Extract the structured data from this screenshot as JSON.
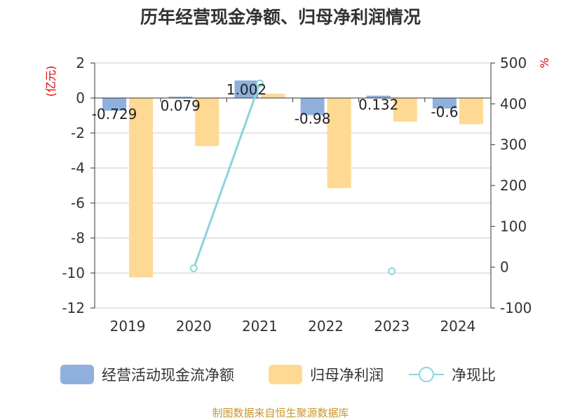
{
  "chart_data": {
    "type": "bar+line",
    "title": "历年经营现金净额、归母净利润情况",
    "categories": [
      "2019",
      "2020",
      "2021",
      "2022",
      "2023",
      "2024"
    ],
    "y_left": {
      "unit": "(亿元)",
      "ylim": [
        -12,
        2
      ],
      "ticks": [
        "2",
        "0",
        "-2",
        "-4",
        "-6",
        "-8",
        "-10",
        "-12"
      ]
    },
    "y_right": {
      "unit": "%",
      "ylim": [
        -100,
        500
      ],
      "ticks": [
        "500",
        "400",
        "300",
        "200",
        "100",
        "0",
        "-100"
      ]
    },
    "series": [
      {
        "name": "经营活动现金流净额",
        "type": "bar",
        "axis": "left",
        "color": "#8fb0dc",
        "values": [
          -0.729,
          0.079,
          1.002,
          -0.98,
          0.132,
          -0.6
        ],
        "labels": [
          "-0.729",
          "0.079",
          "1.002",
          "-0.98",
          "0.132",
          "-0.6"
        ]
      },
      {
        "name": "归母净利润",
        "type": "bar",
        "axis": "left",
        "color": "#fed993",
        "values": [
          -10.25,
          -2.75,
          0.25,
          -5.15,
          -1.35,
          -1.5
        ]
      },
      {
        "name": "净现比",
        "type": "line",
        "axis": "right",
        "color": "#8dd3dd",
        "values": [
          null,
          -3,
          450,
          null,
          -10,
          null
        ]
      }
    ],
    "grid": true,
    "legend_position": "bottom"
  },
  "footer": {
    "source": "制图数据来自恒生聚源数据库"
  }
}
